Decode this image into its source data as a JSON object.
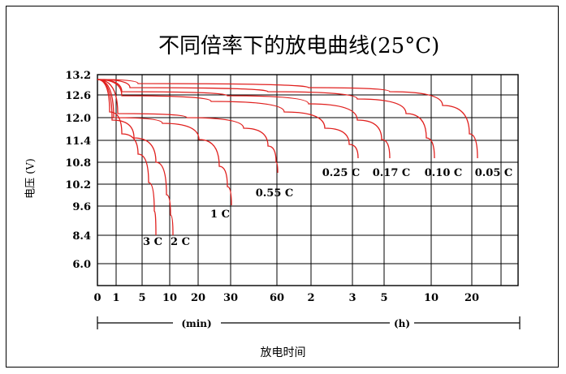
{
  "chart_data": {
    "type": "line",
    "title": "不同倍率下的放电曲线(25°C)",
    "xlabel": "放电时间",
    "ylabel": "电压 (V)",
    "x_ticks": [
      "0",
      "1",
      "5",
      "10",
      "20",
      "30",
      "60",
      "2",
      "3",
      "5",
      "10",
      "20"
    ],
    "x_units": [
      {
        "label": "(min)"
      },
      {
        "label": "(h)"
      }
    ],
    "y_ticks": [
      13.2,
      12.6,
      12.0,
      11.4,
      10.8,
      10.2,
      9.6,
      8.4,
      6.0
    ],
    "grid": true,
    "series": [
      {
        "name": "3C",
        "x": [
          "0",
          "1",
          "5",
          "10"
        ],
        "y": [
          13.1,
          11.6,
          10.9,
          8.6
        ]
      },
      {
        "name": "2C",
        "x": [
          "0",
          "1",
          "5",
          "10"
        ],
        "y": [
          13.1,
          11.7,
          11.2,
          8.6
        ]
      },
      {
        "name": "1C",
        "x": [
          "0",
          "1",
          "10",
          "30"
        ],
        "y": [
          13.1,
          12.0,
          11.6,
          9.8
        ]
      },
      {
        "name": "0.55C",
        "x": [
          "0",
          "1",
          "20",
          "60"
        ],
        "y": [
          13.1,
          12.1,
          11.7,
          10.6
        ]
      },
      {
        "name": "0.25C",
        "x": [
          "0",
          "1",
          "60",
          "3"
        ],
        "y": [
          13.1,
          12.4,
          12.0,
          10.9
        ]
      },
      {
        "name": "0.17C",
        "x": [
          "0",
          "1",
          "60",
          "5"
        ],
        "y": [
          13.1,
          12.5,
          12.2,
          10.9
        ]
      },
      {
        "name": "0.10C",
        "x": [
          "0",
          "1",
          "2",
          "10"
        ],
        "y": [
          13.1,
          12.6,
          12.4,
          10.9
        ]
      },
      {
        "name": "0.05C",
        "x": [
          "0",
          "1",
          "5",
          "20"
        ],
        "y": [
          13.1,
          12.7,
          12.5,
          10.9
        ]
      }
    ],
    "series_color": "#e0201e",
    "grid_color": "#000000"
  }
}
